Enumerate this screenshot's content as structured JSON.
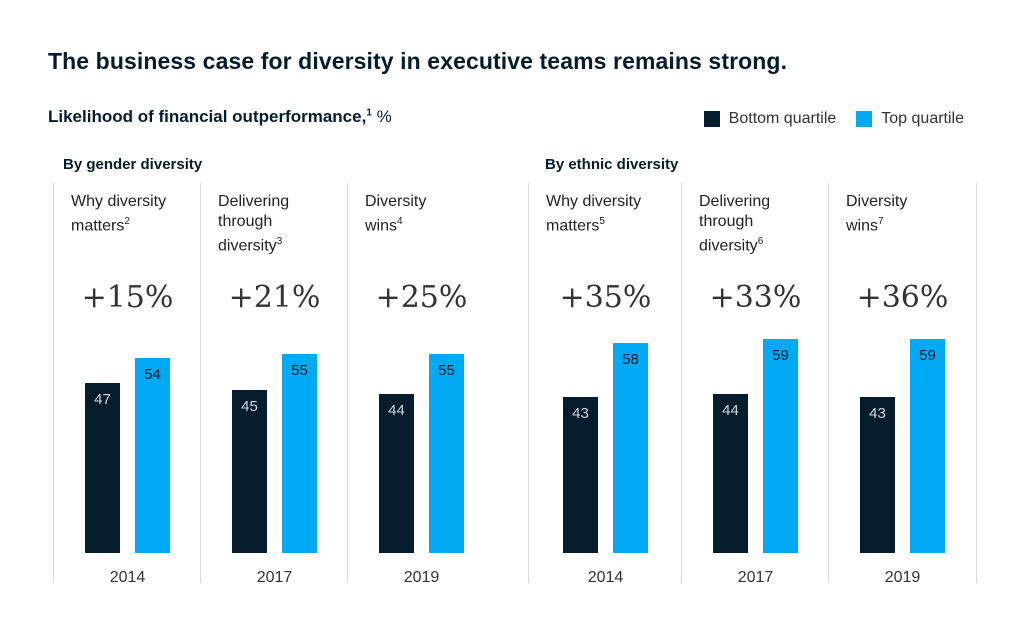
{
  "title": "The business case for diversity in executive teams remains strong.",
  "subtitle": {
    "text": "Likelihood of financial outperformance,",
    "footnote": "1",
    "unit": "%"
  },
  "legend": [
    {
      "label": "Bottom quartile",
      "color": "#051c2c"
    },
    {
      "label": "Top quartile",
      "color": "#00a9f4"
    }
  ],
  "chart_data": {
    "type": "bar",
    "ylim": [
      0,
      100
    ],
    "groups": [
      {
        "label": "By gender diversity",
        "panels": [
          {
            "title": "Why diversity matters",
            "footnote": "2",
            "difference": "+15%",
            "year": "2014",
            "bottom_quartile": 47,
            "top_quartile": 54
          },
          {
            "title": "Delivering through diversity",
            "footnote": "3",
            "difference": "+21%",
            "year": "2017",
            "bottom_quartile": 45,
            "top_quartile": 55
          },
          {
            "title": "Diversity wins",
            "footnote": "4",
            "difference": "+25%",
            "year": "2019",
            "bottom_quartile": 44,
            "top_quartile": 55
          }
        ]
      },
      {
        "label": "By ethnic diversity",
        "panels": [
          {
            "title": "Why diversity matters",
            "footnote": "5",
            "difference": "+35%",
            "year": "2014",
            "bottom_quartile": 43,
            "top_quartile": 58
          },
          {
            "title": "Delivering through diversity",
            "footnote": "6",
            "difference": "+33%",
            "year": "2017",
            "bottom_quartile": 44,
            "top_quartile": 59
          },
          {
            "title": "Diversity wins",
            "footnote": "7",
            "difference": "+36%",
            "year": "2019",
            "bottom_quartile": 43,
            "top_quartile": 59
          }
        ]
      }
    ]
  }
}
